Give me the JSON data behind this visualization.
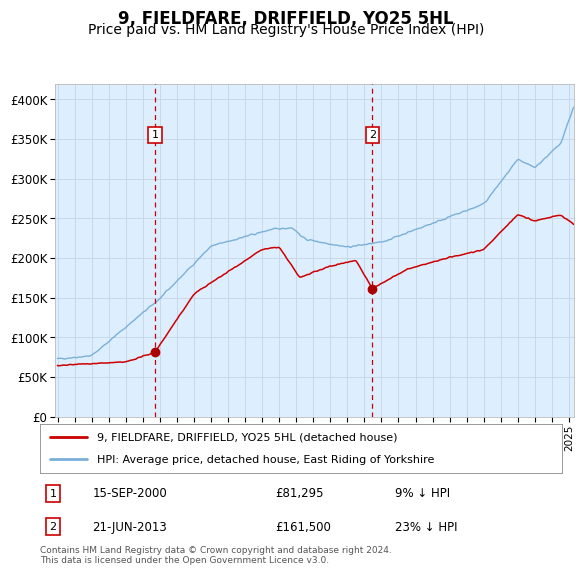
{
  "title": "9, FIELDFARE, DRIFFIELD, YO25 5HL",
  "subtitle": "Price paid vs. HM Land Registry's House Price Index (HPI)",
  "title_fontsize": 12,
  "subtitle_fontsize": 10,
  "background_color": "#ffffff",
  "plot_bg_color": "#ddeeff",
  "grid_color": "#ccddee",
  "hpi_color": "#7ab0d8",
  "price_color": "#cc0000",
  "marker_color": "#aa0000",
  "vline_color": "#cc0000",
  "annotation_box_color": "#cc0000",
  "ylim": [
    0,
    420000
  ],
  "yticks": [
    0,
    50000,
    100000,
    150000,
    200000,
    250000,
    300000,
    350000,
    400000
  ],
  "ytick_labels": [
    "£0",
    "£50K",
    "£100K",
    "£150K",
    "£200K",
    "£250K",
    "£300K",
    "£350K",
    "£400K"
  ],
  "sale1_date": 2000.71,
  "sale1_price": 81295,
  "sale1_label": "1",
  "sale1_text": "15-SEP-2000",
  "sale1_price_text": "£81,295",
  "sale1_hpi_text": "9% ↓ HPI",
  "sale2_date": 2013.47,
  "sale2_price": 161500,
  "sale2_label": "2",
  "sale2_text": "21-JUN-2013",
  "sale2_price_text": "£161,500",
  "sale2_hpi_text": "23% ↓ HPI",
  "legend_label1": "9, FIELDFARE, DRIFFIELD, YO25 5HL (detached house)",
  "legend_label2": "HPI: Average price, detached house, East Riding of Yorkshire",
  "footer_text": "Contains HM Land Registry data © Crown copyright and database right 2024.\nThis data is licensed under the Open Government Licence v3.0.",
  "xstart": 1995.0,
  "xend": 2025.3
}
